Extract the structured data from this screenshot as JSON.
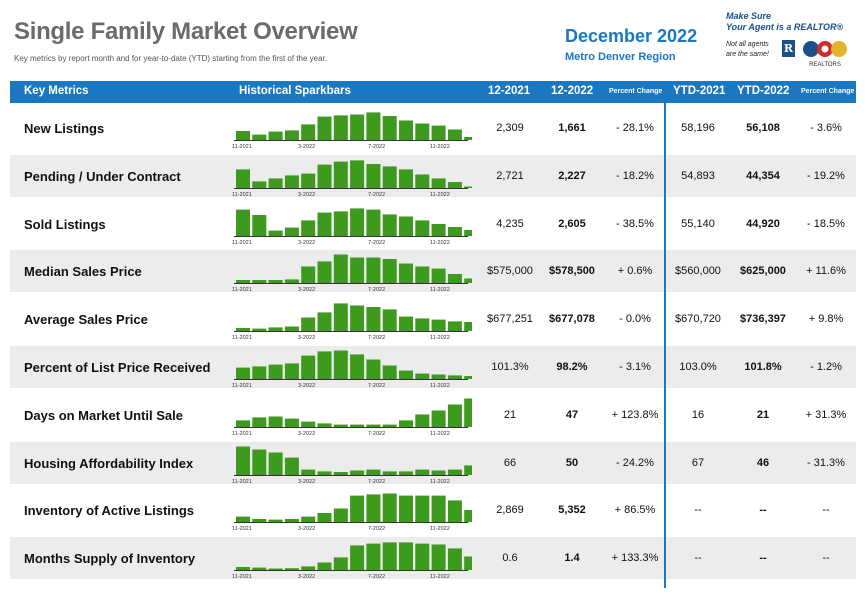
{
  "title": "Single Family Market Overview",
  "subtitle": "Key metrics by report month and for year-to-date (YTD) starting from the first of the year.",
  "period": "December 2022",
  "region": "Metro Denver Region",
  "badge": {
    "line1": "Make Sure",
    "line2": "Your Agent is a REALTOR®",
    "line3": "Not all agents",
    "line4": "are the same!",
    "r_mark": "R",
    "logo_text": "REALTORS"
  },
  "colors": {
    "accent": "#1a78c2",
    "bar": "#3d9a1e",
    "row_bg": "#ececec"
  },
  "header": {
    "key_metrics": "Key Metrics",
    "sparkbars": "Historical Sparkbars",
    "col_12_2021": "12-2021",
    "col_12_2022": "12-2022",
    "pct_change": "Percent Change",
    "ytd_2021": "YTD-2021",
    "ytd_2022": "YTD-2022",
    "ytd_pct_change": "Percent Change"
  },
  "spark_axis_labels": [
    "11-2021",
    "3-2022",
    "7-2022",
    "11-2022"
  ],
  "rows": [
    {
      "metric": "New Listings",
      "v2021": "2,309",
      "v2022": "1,661",
      "pct": "- 28.1%",
      "ytd2021": "58,196",
      "ytd2022": "56,108",
      "ytdpct": "- 3.6%",
      "spark": [
        0.3,
        0.18,
        0.28,
        0.32,
        0.52,
        0.78,
        0.82,
        0.85,
        0.92,
        0.8,
        0.65,
        0.55,
        0.48,
        0.35,
        0.1
      ]
    },
    {
      "metric": "Pending / Under Contract",
      "v2021": "2,721",
      "v2022": "2,227",
      "pct": "- 18.2%",
      "ytd2021": "54,893",
      "ytd2022": "44,354",
      "ytdpct": "- 19.2%",
      "spark": [
        0.62,
        0.22,
        0.32,
        0.42,
        0.48,
        0.78,
        0.88,
        0.92,
        0.8,
        0.72,
        0.62,
        0.45,
        0.32,
        0.2,
        0.05
      ]
    },
    {
      "metric": "Sold Listings",
      "v2021": "4,235",
      "v2022": "2,605",
      "pct": "- 38.5%",
      "ytd2021": "55,140",
      "ytd2022": "44,920",
      "ytdpct": "- 18.5%",
      "spark": [
        0.88,
        0.7,
        0.18,
        0.28,
        0.52,
        0.78,
        0.82,
        0.92,
        0.88,
        0.72,
        0.65,
        0.52,
        0.4,
        0.3,
        0.2
      ]
    },
    {
      "metric": "Median Sales Price",
      "v2021": "$575,000",
      "v2022": "$578,500",
      "pct": "+ 0.6%",
      "ytd2021": "$560,000",
      "ytd2022": "$625,000",
      "ytdpct": "+ 11.6%",
      "spark": [
        0.1,
        0.1,
        0.1,
        0.12,
        0.55,
        0.72,
        0.95,
        0.85,
        0.85,
        0.8,
        0.65,
        0.55,
        0.48,
        0.3,
        0.15
      ]
    },
    {
      "metric": "Average Sales Price",
      "v2021": "$677,251",
      "v2022": "$677,078",
      "pct": "- 0.0%",
      "ytd2021": "$670,720",
      "ytd2022": "$736,397",
      "ytdpct": "+ 9.8%",
      "spark": [
        0.1,
        0.08,
        0.12,
        0.15,
        0.45,
        0.62,
        0.92,
        0.85,
        0.8,
        0.72,
        0.48,
        0.42,
        0.38,
        0.32,
        0.3
      ]
    },
    {
      "metric": "Percent of List Price Received",
      "v2021": "101.3%",
      "v2022": "98.2%",
      "pct": "- 3.1%",
      "ytd2021": "103.0%",
      "ytd2022": "101.8%",
      "ytdpct": "- 1.2%",
      "spark": [
        0.38,
        0.42,
        0.48,
        0.52,
        0.78,
        0.92,
        0.95,
        0.82,
        0.65,
        0.45,
        0.28,
        0.18,
        0.15,
        0.12,
        0.1
      ]
    },
    {
      "metric": "Days on Market Until Sale",
      "v2021": "21",
      "v2022": "47",
      "pct": "+ 123.8%",
      "ytd2021": "16",
      "ytd2022": "21",
      "ytdpct": "+ 31.3%",
      "spark": [
        0.22,
        0.32,
        0.35,
        0.28,
        0.18,
        0.12,
        0.08,
        0.08,
        0.08,
        0.08,
        0.22,
        0.42,
        0.55,
        0.75,
        0.95
      ]
    },
    {
      "metric": "Housing Affordability Index",
      "v2021": "66",
      "v2022": "50",
      "pct": "- 24.2%",
      "ytd2021": "67",
      "ytd2022": "46",
      "ytdpct": "- 31.3%",
      "spark": [
        0.95,
        0.85,
        0.75,
        0.58,
        0.18,
        0.12,
        0.1,
        0.15,
        0.18,
        0.12,
        0.12,
        0.18,
        0.15,
        0.18,
        0.32
      ]
    },
    {
      "metric": "Inventory of Active Listings",
      "v2021": "2,869",
      "v2022": "5,352",
      "pct": "+ 86.5%",
      "ytd2021": "--",
      "ytd2022": "--",
      "ytdpct": "--",
      "spark": [
        0.18,
        0.1,
        0.08,
        0.1,
        0.18,
        0.3,
        0.45,
        0.88,
        0.92,
        0.95,
        0.88,
        0.88,
        0.88,
        0.72,
        0.4
      ]
    },
    {
      "metric": "Months Supply of Inventory",
      "v2021": "0.6",
      "v2022": "1.4",
      "pct": "+ 133.3%",
      "ytd2021": "--",
      "ytd2022": "--",
      "ytdpct": "--",
      "spark": [
        0.1,
        0.08,
        0.05,
        0.06,
        0.12,
        0.25,
        0.42,
        0.82,
        0.88,
        0.92,
        0.92,
        0.88,
        0.85,
        0.72,
        0.45
      ]
    }
  ]
}
